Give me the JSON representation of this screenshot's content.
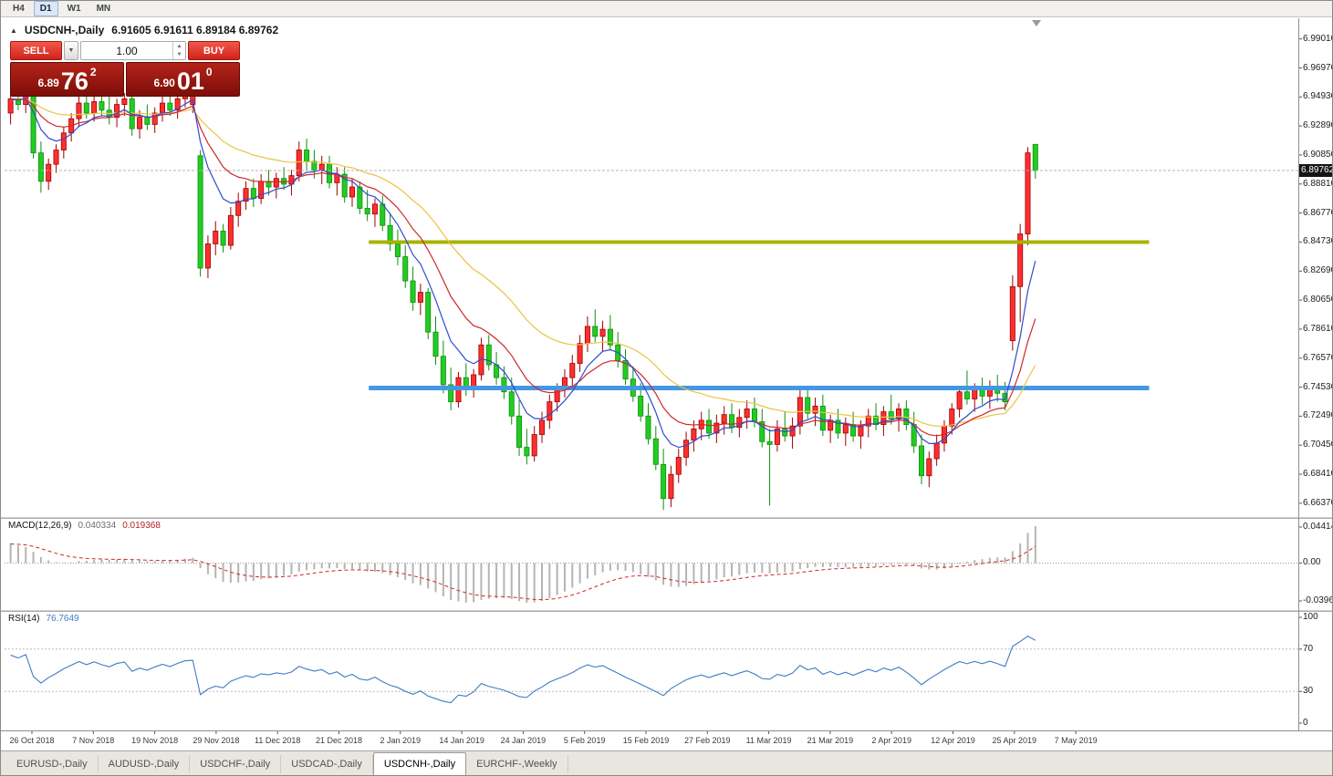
{
  "toolbar": {
    "timeframes": [
      {
        "label": "H4",
        "active": false
      },
      {
        "label": "D1",
        "active": true
      },
      {
        "label": "W1",
        "active": false
      },
      {
        "label": "MN",
        "active": false
      }
    ]
  },
  "icons": {
    "collapse": "▲",
    "dropdown": "▼",
    "spin_up": "▲",
    "spin_down": "▼"
  },
  "chart": {
    "title": "USDCNH-,Daily",
    "title_ohlc": "6.91605 6.91611 6.89184 6.89762",
    "current_price": "6.89762"
  },
  "one_click": {
    "sell_label": "SELL",
    "buy_label": "BUY",
    "volume": "1.00",
    "bid": {
      "prefix": "6.89",
      "big": "76",
      "sup": "2"
    },
    "ask": {
      "prefix": "6.90",
      "big": "01",
      "sup": "0"
    }
  },
  "tabs": [
    {
      "label": "EURUSD-,Daily",
      "active": false
    },
    {
      "label": "AUDUSD-,Daily",
      "active": false
    },
    {
      "label": "USDCHF-,Daily",
      "active": false
    },
    {
      "label": "USDCAD-,Daily",
      "active": false
    },
    {
      "label": "USDCNH-,Daily",
      "active": true
    },
    {
      "label": "EURCHF-,Weekly",
      "active": false
    }
  ],
  "chart_data": {
    "type": "candlestick",
    "symbol": "USDCNH-",
    "period": "Daily",
    "current_bar": {
      "open": 6.91605,
      "high": 6.91611,
      "low": 6.89184,
      "close": 6.89762
    },
    "bid_price": 6.89762,
    "price_axis_labels": [
      "6.99010",
      "6.96970",
      "6.94930",
      "6.92890",
      "6.90850",
      "6.88810",
      "6.86770",
      "6.84730",
      "6.82690",
      "6.80650",
      "6.78610",
      "6.76570",
      "6.74530",
      "6.72490",
      "6.70450",
      "6.68410",
      "6.66370"
    ],
    "time_axis_labels": [
      "26 Oct 2018",
      "7 Nov 2018",
      "19 Nov 2018",
      "29 Nov 2018",
      "11 Dec 2018",
      "21 Dec 2018",
      "2 Jan 2019",
      "14 Jan 2019",
      "24 Jan 2019",
      "5 Feb 2019",
      "15 Feb 2019",
      "27 Feb 2019",
      "11 Mar 2019",
      "21 Mar 2019",
      "2 Apr 2019",
      "12 Apr 2019",
      "25 Apr 2019",
      "7 May 2019"
    ],
    "candle_colors": {
      "up_fill": "#ff2f2f",
      "up_stroke": "#a00000",
      "down_fill": "#22cc22",
      "down_stroke": "#0e8f0e"
    },
    "moving_averages": [
      {
        "name": "ma-slow",
        "period": 30,
        "color": "#edc243"
      },
      {
        "name": "ma-mid",
        "period": 14,
        "color": "#d02828"
      },
      {
        "name": "ma-fast",
        "period": 7,
        "color": "#2f4bd0"
      }
    ],
    "hlines": [
      {
        "name": "resistance-line",
        "price": 6.8473,
        "color": "#a6b400",
        "width": 4,
        "bar_start": 47.5,
        "bar_end": 150.3
      },
      {
        "name": "support-line",
        "price": 6.7447,
        "color": "#4597e3",
        "width": 5,
        "bar_start": 47.5,
        "bar_end": 150.3
      }
    ],
    "macd": {
      "label": "MACD(12,26,9)",
      "value": "0.040334",
      "signal_value": "0.019368",
      "fast": 12,
      "slow": 26,
      "signal": 9,
      "axis_labels": [
        "0.044143",
        "0.00",
        "-0.039643"
      ],
      "hist_color": "#b4b4b4",
      "signal_color": "#cc2a2a"
    },
    "rsi": {
      "label": "RSI(14)",
      "value": "76.7649",
      "period": 14,
      "axis_labels": [
        "100",
        "70",
        "30",
        "0"
      ],
      "levels": [
        70,
        30
      ],
      "color": "#3f7cc4"
    },
    "candles": [
      [
        6.938,
        6.952,
        6.93,
        6.948
      ],
      [
        6.948,
        6.958,
        6.94,
        6.944
      ],
      [
        6.944,
        6.956,
        6.938,
        6.952
      ],
      [
        6.952,
        6.955,
        6.906,
        6.91
      ],
      [
        6.91,
        6.918,
        6.882,
        6.89
      ],
      [
        6.89,
        6.906,
        6.884,
        6.902
      ],
      [
        6.902,
        6.916,
        6.896,
        6.912
      ],
      [
        6.912,
        6.928,
        6.906,
        6.924
      ],
      [
        6.924,
        6.938,
        6.918,
        6.934
      ],
      [
        6.934,
        6.95,
        6.928,
        6.945
      ],
      [
        6.945,
        6.952,
        6.934,
        6.938
      ],
      [
        6.938,
        6.95,
        6.932,
        6.946
      ],
      [
        6.946,
        6.953,
        6.936,
        6.94
      ],
      [
        6.94,
        6.95,
        6.93,
        6.935
      ],
      [
        6.935,
        6.948,
        6.928,
        6.944
      ],
      [
        6.944,
        6.952,
        6.936,
        6.948
      ],
      [
        6.948,
        6.95,
        6.922,
        6.927
      ],
      [
        6.927,
        6.94,
        6.92,
        6.935
      ],
      [
        6.935,
        6.944,
        6.926,
        6.93
      ],
      [
        6.93,
        6.942,
        6.924,
        6.938
      ],
      [
        6.938,
        6.95,
        6.932,
        6.945
      ],
      [
        6.945,
        6.952,
        6.936,
        6.94
      ],
      [
        6.94,
        6.952,
        6.934,
        6.948
      ],
      [
        6.948,
        6.96,
        6.942,
        6.955
      ],
      [
        6.944,
        6.959,
        6.938,
        6.956
      ],
      [
        6.908,
        6.912,
        6.823,
        6.829
      ],
      [
        6.829,
        6.852,
        6.822,
        6.846
      ],
      [
        6.846,
        6.862,
        6.838,
        6.855
      ],
      [
        6.855,
        6.86,
        6.84,
        6.845
      ],
      [
        6.845,
        6.872,
        6.842,
        6.866
      ],
      [
        6.866,
        6.882,
        6.858,
        6.876
      ],
      [
        6.876,
        6.89,
        6.87,
        6.885
      ],
      [
        6.885,
        6.892,
        6.872,
        6.878
      ],
      [
        6.878,
        6.895,
        6.874,
        6.89
      ],
      [
        6.89,
        6.898,
        6.88,
        6.886
      ],
      [
        6.886,
        6.896,
        6.878,
        6.892
      ],
      [
        6.892,
        6.9,
        6.884,
        6.888
      ],
      [
        6.888,
        6.898,
        6.88,
        6.894
      ],
      [
        6.894,
        6.918,
        6.89,
        6.912
      ],
      [
        6.912,
        6.92,
        6.898,
        6.904
      ],
      [
        6.904,
        6.912,
        6.892,
        6.898
      ],
      [
        6.898,
        6.908,
        6.888,
        6.902
      ],
      [
        6.902,
        6.908,
        6.885,
        6.889
      ],
      [
        6.889,
        6.9,
        6.88,
        6.895
      ],
      [
        6.895,
        6.9,
        6.875,
        6.879
      ],
      [
        6.879,
        6.892,
        6.872,
        6.886
      ],
      [
        6.886,
        6.89,
        6.867,
        6.871
      ],
      [
        6.871,
        6.884,
        6.862,
        6.867
      ],
      [
        6.867,
        6.878,
        6.858,
        6.874
      ],
      [
        6.874,
        6.88,
        6.855,
        6.859
      ],
      [
        6.859,
        6.868,
        6.841,
        6.846
      ],
      [
        6.846,
        6.856,
        6.831,
        6.837
      ],
      [
        6.837,
        6.845,
        6.815,
        6.82
      ],
      [
        6.82,
        6.83,
        6.799,
        6.805
      ],
      [
        6.805,
        6.818,
        6.796,
        6.812
      ],
      [
        6.812,
        6.815,
        6.779,
        6.784
      ],
      [
        6.784,
        6.795,
        6.761,
        6.767
      ],
      [
        6.767,
        6.778,
        6.741,
        6.747
      ],
      [
        6.747,
        6.759,
        6.729,
        6.735
      ],
      [
        6.735,
        6.756,
        6.731,
        6.752
      ],
      [
        6.752,
        6.762,
        6.739,
        6.744
      ],
      [
        6.744,
        6.758,
        6.738,
        6.754
      ],
      [
        6.754,
        6.78,
        6.75,
        6.775
      ],
      [
        6.775,
        6.782,
        6.757,
        6.761
      ],
      [
        6.761,
        6.77,
        6.747,
        6.752
      ],
      [
        6.752,
        6.76,
        6.737,
        6.742
      ],
      [
        6.742,
        6.752,
        6.719,
        6.725
      ],
      [
        6.725,
        6.736,
        6.697,
        6.703
      ],
      [
        6.703,
        6.716,
        6.691,
        6.697
      ],
      [
        6.697,
        6.718,
        6.693,
        6.712
      ],
      [
        6.712,
        6.728,
        6.706,
        6.722
      ],
      [
        6.722,
        6.74,
        6.716,
        6.735
      ],
      [
        6.735,
        6.748,
        6.728,
        6.744
      ],
      [
        6.744,
        6.758,
        6.738,
        6.752
      ],
      [
        6.752,
        6.768,
        6.745,
        6.762
      ],
      [
        6.762,
        6.782,
        6.756,
        6.776
      ],
      [
        6.776,
        6.795,
        6.77,
        6.788
      ],
      [
        6.788,
        6.8,
        6.777,
        6.781
      ],
      [
        6.781,
        6.792,
        6.77,
        6.786
      ],
      [
        6.786,
        6.796,
        6.771,
        6.775
      ],
      [
        6.775,
        6.784,
        6.759,
        6.764
      ],
      [
        6.764,
        6.772,
        6.747,
        6.751
      ],
      [
        6.751,
        6.76,
        6.735,
        6.739
      ],
      [
        6.739,
        6.748,
        6.721,
        6.725
      ],
      [
        6.725,
        6.734,
        6.705,
        6.709
      ],
      [
        6.709,
        6.718,
        6.687,
        6.691
      ],
      [
        6.691,
        6.702,
        6.659,
        6.667
      ],
      [
        6.667,
        6.69,
        6.661,
        6.684
      ],
      [
        6.684,
        6.702,
        6.678,
        6.696
      ],
      [
        6.696,
        6.714,
        6.69,
        6.708
      ],
      [
        6.708,
        6.722,
        6.7,
        6.716
      ],
      [
        6.716,
        6.728,
        6.708,
        6.722
      ],
      [
        6.722,
        6.73,
        6.709,
        6.713
      ],
      [
        6.713,
        6.726,
        6.706,
        6.72
      ],
      [
        6.72,
        6.732,
        6.712,
        6.726
      ],
      [
        6.726,
        6.734,
        6.713,
        6.717
      ],
      [
        6.717,
        6.73,
        6.71,
        6.724
      ],
      [
        6.724,
        6.736,
        6.716,
        6.73
      ],
      [
        6.73,
        6.738,
        6.717,
        6.721
      ],
      [
        6.721,
        6.73,
        6.703,
        6.707
      ],
      [
        6.707,
        6.716,
        6.662,
        6.705
      ],
      [
        6.705,
        6.722,
        6.7,
        6.716
      ],
      [
        6.716,
        6.728,
        6.707,
        6.711
      ],
      [
        6.711,
        6.724,
        6.702,
        6.718
      ],
      [
        6.718,
        6.745,
        6.712,
        6.738
      ],
      [
        6.738,
        6.746,
        6.723,
        6.727
      ],
      [
        6.727,
        6.738,
        6.718,
        6.732
      ],
      [
        6.732,
        6.74,
        6.711,
        6.715
      ],
      [
        6.715,
        6.726,
        6.706,
        6.722
      ],
      [
        6.722,
        6.73,
        6.709,
        6.713
      ],
      [
        6.713,
        6.724,
        6.704,
        6.719
      ],
      [
        6.719,
        6.728,
        6.707,
        6.711
      ],
      [
        6.711,
        6.722,
        6.702,
        6.718
      ],
      [
        6.718,
        6.73,
        6.71,
        6.725
      ],
      [
        6.725,
        6.734,
        6.715,
        6.719
      ],
      [
        6.719,
        6.732,
        6.711,
        6.728
      ],
      [
        6.728,
        6.74,
        6.719,
        6.723
      ],
      [
        6.723,
        6.734,
        6.714,
        6.73
      ],
      [
        6.73,
        6.736,
        6.715,
        6.719
      ],
      [
        6.719,
        6.728,
        6.699,
        6.704
      ],
      [
        6.704,
        6.712,
        6.677,
        6.683
      ],
      [
        6.683,
        6.7,
        6.675,
        6.695
      ],
      [
        6.695,
        6.712,
        6.69,
        6.706
      ],
      [
        6.706,
        6.722,
        6.7,
        6.718
      ],
      [
        6.718,
        6.734,
        6.712,
        6.73
      ],
      [
        6.73,
        6.746,
        6.724,
        6.742
      ],
      [
        6.742,
        6.757,
        6.733,
        6.737
      ],
      [
        6.737,
        6.748,
        6.728,
        6.744
      ],
      [
        6.744,
        6.752,
        6.733,
        6.739
      ],
      [
        6.739,
        6.75,
        6.73,
        6.746
      ],
      [
        6.746,
        6.754,
        6.735,
        6.741
      ],
      [
        6.741,
        6.749,
        6.729,
        6.735
      ],
      [
        6.778,
        6.824,
        6.771,
        6.816
      ],
      [
        6.816,
        6.86,
        6.791,
        6.853
      ],
      [
        6.853,
        6.914,
        6.845,
        6.91
      ],
      [
        6.916,
        6.91611,
        6.8918,
        6.89762
      ]
    ]
  }
}
